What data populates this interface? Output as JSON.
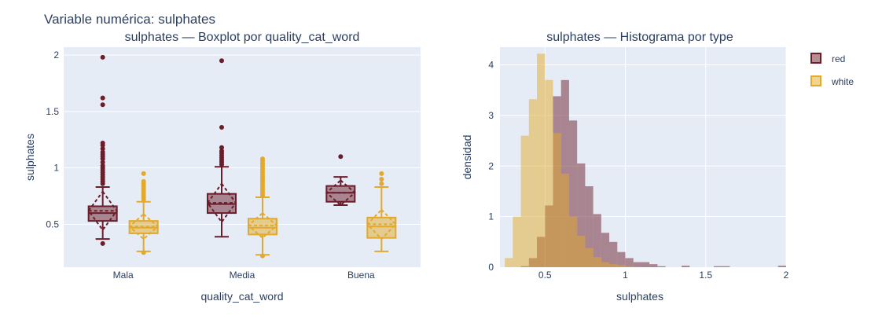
{
  "page_title": "Variable numérica: sulphates",
  "colors": {
    "red": "#6b1d2a",
    "white": "#e3a92a",
    "plot_bg": "#e5ecf6",
    "text": "#2a3f5f"
  },
  "chart_data": [
    {
      "type": "box",
      "title": "sulphates — Boxplot por quality_cat_word",
      "xlabel": "quality_cat_word",
      "ylabel": "sulphates",
      "ylim": [
        0.12,
        2.07
      ],
      "yticks": [
        0.5,
        1,
        1.5,
        2
      ],
      "ytick_labels": [
        "0.5",
        "1",
        "1.5",
        "2"
      ],
      "categories": [
        "Mala",
        "Media",
        "Buena"
      ],
      "grid": true,
      "series": [
        {
          "name": "red",
          "color_key": "red",
          "boxes": [
            {
              "category": "Mala",
              "lower_fence": 0.37,
              "q1": 0.53,
              "median": 0.6,
              "mean": 0.62,
              "q3": 0.66,
              "upper_fence": 0.83,
              "sd": 0.17,
              "outliers": [
                0.86,
                0.88,
                0.9,
                0.92,
                0.94,
                0.96,
                0.98,
                1.0,
                1.02,
                1.05,
                1.08,
                1.1,
                1.12,
                1.14,
                1.17,
                1.2,
                1.22,
                1.56,
                1.62,
                1.98,
                0.33
              ]
            },
            {
              "category": "Media",
              "lower_fence": 0.39,
              "q1": 0.6,
              "median": 0.68,
              "mean": 0.69,
              "q3": 0.77,
              "upper_fence": 1.01,
              "sd": 0.17,
              "outliers": [
                1.03,
                1.05,
                1.07,
                1.09,
                1.11,
                1.13,
                1.15,
                1.18,
                1.36,
                1.95
              ]
            },
            {
              "category": "Buena",
              "lower_fence": 0.67,
              "q1": 0.7,
              "median": 0.78,
              "mean": 0.78,
              "q3": 0.84,
              "upper_fence": 0.92,
              "sd": 0.11,
              "outliers": [
                1.1
              ]
            }
          ]
        },
        {
          "name": "white",
          "color_key": "white",
          "boxes": [
            {
              "category": "Mala",
              "lower_fence": 0.26,
              "q1": 0.42,
              "median": 0.47,
              "mean": 0.48,
              "q3": 0.53,
              "upper_fence": 0.7,
              "sd": 0.11,
              "outliers": [
                0.72,
                0.74,
                0.76,
                0.78,
                0.8,
                0.82,
                0.84,
                0.86,
                0.88,
                0.95,
                0.25
              ]
            },
            {
              "category": "Media",
              "lower_fence": 0.23,
              "q1": 0.41,
              "median": 0.47,
              "mean": 0.49,
              "q3": 0.55,
              "upper_fence": 0.74,
              "sd": 0.11,
              "outliers": [
                0.76,
                0.78,
                0.8,
                0.82,
                0.84,
                0.86,
                0.88,
                0.9,
                0.92,
                0.94,
                0.96,
                0.98,
                1.0,
                1.02,
                1.04,
                1.06,
                1.08,
                0.22
              ]
            },
            {
              "category": "Buena",
              "lower_fence": 0.26,
              "q1": 0.38,
              "median": 0.48,
              "mean": 0.5,
              "q3": 0.56,
              "upper_fence": 0.83,
              "sd": 0.13,
              "outliers": [
                0.86,
                0.9,
                0.95
              ]
            }
          ]
        }
      ]
    },
    {
      "type": "histogram",
      "title": "sulphates — Histograma por type",
      "xlabel": "sulphates",
      "ylabel": "densidad",
      "xlim": [
        0.22,
        2.0
      ],
      "ylim": [
        0,
        4.35
      ],
      "xticks": [
        0.5,
        1,
        1.5,
        2
      ],
      "xtick_labels": [
        "0.5",
        "1",
        "1.5",
        "2"
      ],
      "yticks": [
        0,
        1,
        2,
        3,
        4
      ],
      "ytick_labels": [
        "0",
        "1",
        "2",
        "3",
        "4"
      ],
      "bin_width": 0.05,
      "grid": true,
      "legend_position": "right",
      "series": [
        {
          "name": "red",
          "color_key": "red",
          "bins": [
            [
              0.35,
              0.02
            ],
            [
              0.4,
              0.18
            ],
            [
              0.45,
              0.6
            ],
            [
              0.5,
              1.22
            ],
            [
              0.55,
              3.38
            ],
            [
              0.6,
              3.7
            ],
            [
              0.65,
              2.9
            ],
            [
              0.7,
              2.05
            ],
            [
              0.75,
              1.6
            ],
            [
              0.8,
              1.05
            ],
            [
              0.85,
              0.68
            ],
            [
              0.9,
              0.5
            ],
            [
              0.95,
              0.3
            ],
            [
              1.0,
              0.18
            ],
            [
              1.05,
              0.1
            ],
            [
              1.1,
              0.1
            ],
            [
              1.15,
              0.06
            ],
            [
              1.2,
              0.02
            ],
            [
              1.35,
              0.03
            ],
            [
              1.55,
              0.02
            ],
            [
              1.6,
              0.02
            ],
            [
              1.95,
              0.03
            ]
          ]
        },
        {
          "name": "white",
          "color_key": "white",
          "bins": [
            [
              0.25,
              0.18
            ],
            [
              0.3,
              1.0
            ],
            [
              0.35,
              2.6
            ],
            [
              0.4,
              3.32
            ],
            [
              0.45,
              4.22
            ],
            [
              0.5,
              3.7
            ],
            [
              0.55,
              2.65
            ],
            [
              0.6,
              1.85
            ],
            [
              0.65,
              1.0
            ],
            [
              0.7,
              0.62
            ],
            [
              0.75,
              0.38
            ],
            [
              0.8,
              0.2
            ],
            [
              0.85,
              0.1
            ],
            [
              0.9,
              0.06
            ],
            [
              0.95,
              0.04
            ],
            [
              1.0,
              0.02
            ],
            [
              1.05,
              0.01
            ]
          ]
        }
      ]
    }
  ]
}
